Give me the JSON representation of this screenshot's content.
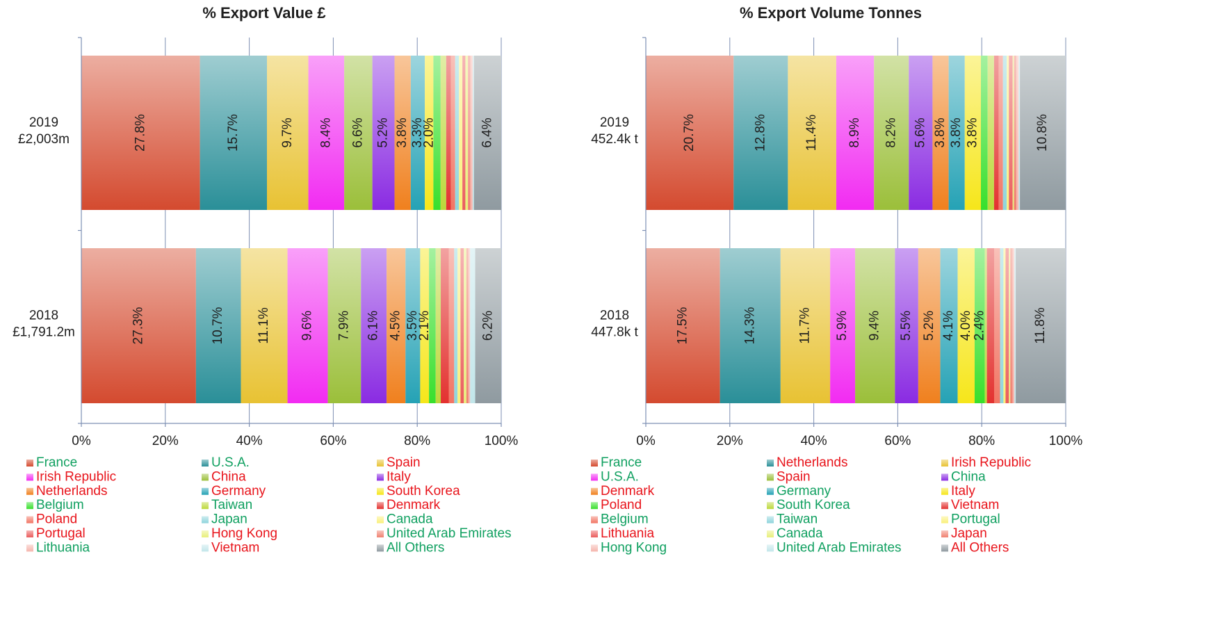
{
  "chart_data": [
    {
      "type": "bar",
      "orientation": "horizontal",
      "stacked": "percent",
      "title": "% Export Value £",
      "x_ticks": [
        "0%",
        "20%",
        "40%",
        "60%",
        "80%",
        "100%"
      ],
      "xlim": [
        0,
        100
      ],
      "grid": true,
      "legend_position": "bottom",
      "categories": [
        {
          "year": "2019",
          "total": "£2,003m"
        },
        {
          "year": "2018",
          "total": "£1,791.2m"
        }
      ],
      "series": [
        {
          "name": "France",
          "color": "#d44a2f",
          "label_color": "#10a060",
          "values": [
            27.8,
            27.3
          ]
        },
        {
          "name": "U.S.A.",
          "color": "#2a8f98",
          "label_color": "#10a060",
          "values": [
            15.7,
            10.7
          ]
        },
        {
          "name": "Spain",
          "color": "#e8c233",
          "label_color": "#e8141b",
          "values": [
            9.7,
            11.1
          ]
        },
        {
          "name": "Irish Republic",
          "color": "#f22bf2",
          "label_color": "#e8141b",
          "values": [
            8.4,
            9.6
          ]
        },
        {
          "name": "China",
          "color": "#9bbf3a",
          "label_color": "#e8141b",
          "values": [
            6.6,
            7.9
          ]
        },
        {
          "name": "Italy",
          "color": "#8a2be2",
          "label_color": "#e8141b",
          "values": [
            5.2,
            6.1
          ]
        },
        {
          "name": "Netherlands",
          "color": "#f0801e",
          "label_color": "#e8141b",
          "values": [
            3.8,
            4.5
          ]
        },
        {
          "name": "Germany",
          "color": "#25a2b5",
          "label_color": "#e8141b",
          "values": [
            3.3,
            3.5
          ]
        },
        {
          "name": "South Korea",
          "color": "#f6e61a",
          "label_color": "#e8141b",
          "values": [
            2.0,
            2.1
          ]
        },
        {
          "name": "Belgium",
          "color": "#38df2c",
          "label_color": "#10a060",
          "values": [
            1.7,
            1.6
          ]
        },
        {
          "name": "Taiwan",
          "color": "#bcd83a",
          "label_color": "#10a060",
          "values": [
            1.3,
            1.2
          ]
        },
        {
          "name": "Denmark",
          "color": "#e3312f",
          "label_color": "#e8141b",
          "values": [
            1.1,
            1.9
          ]
        },
        {
          "name": "Poland",
          "color": "#f27564",
          "label_color": "#e8141b",
          "values": [
            1.0,
            1.3
          ]
        },
        {
          "name": "Japan",
          "color": "#8fd4dc",
          "label_color": "#10a060",
          "values": [
            0.9,
            0.8
          ]
        },
        {
          "name": "Canada",
          "color": "#faf07a",
          "label_color": "#10a060",
          "values": [
            0.8,
            0.7
          ]
        },
        {
          "name": "Portugal",
          "color": "#ea5c5c",
          "label_color": "#e8141b",
          "values": [
            0.7,
            0.8
          ]
        },
        {
          "name": "Hong Kong",
          "color": "#e8ef7a",
          "label_color": "#e8141b",
          "values": [
            0.6,
            0.6
          ]
        },
        {
          "name": "United Arab Emirates",
          "color": "#f08070",
          "label_color": "#10a060",
          "values": [
            0.6,
            0.5
          ]
        },
        {
          "name": "Lithuania",
          "color": "#f5b5ad",
          "label_color": "#10a060",
          "values": [
            0.5,
            0.4
          ]
        },
        {
          "name": "Vietnam",
          "color": "#c2e6ea",
          "label_color": "#e8141b",
          "values": [
            0.3,
            1.2
          ]
        },
        {
          "name": "All Others",
          "color": "#8f9aa0",
          "label_color": "#10a060",
          "values": [
            6.4,
            6.2
          ]
        }
      ]
    },
    {
      "type": "bar",
      "orientation": "horizontal",
      "stacked": "percent",
      "title": "% Export Volume Tonnes",
      "x_ticks": [
        "0%",
        "20%",
        "40%",
        "60%",
        "80%",
        "100%"
      ],
      "xlim": [
        0,
        100
      ],
      "grid": true,
      "legend_position": "bottom",
      "categories": [
        {
          "year": "2019",
          "total": "452.4k t"
        },
        {
          "year": "2018",
          "total": "447.8k t"
        }
      ],
      "series": [
        {
          "name": "France",
          "color": "#d44a2f",
          "label_color": "#10a060",
          "values": [
            20.7,
            17.5
          ]
        },
        {
          "name": "Netherlands",
          "color": "#2a8f98",
          "label_color": "#e8141b",
          "values": [
            12.8,
            14.3
          ]
        },
        {
          "name": "Irish Republic",
          "color": "#e8c233",
          "label_color": "#e8141b",
          "values": [
            11.4,
            11.7
          ]
        },
        {
          "name": "U.S.A.",
          "color": "#f22bf2",
          "label_color": "#10a060",
          "values": [
            8.9,
            5.9
          ]
        },
        {
          "name": "Spain",
          "color": "#9bbf3a",
          "label_color": "#e8141b",
          "values": [
            8.2,
            9.4
          ]
        },
        {
          "name": "China",
          "color": "#8a2be2",
          "label_color": "#10a060",
          "values": [
            5.6,
            5.5
          ]
        },
        {
          "name": "Denmark",
          "color": "#f0801e",
          "label_color": "#e8141b",
          "values": [
            3.8,
            5.2
          ]
        },
        {
          "name": "Germany",
          "color": "#25a2b5",
          "label_color": "#10a060",
          "values": [
            3.8,
            4.1
          ]
        },
        {
          "name": "Italy",
          "color": "#f6e61a",
          "label_color": "#e8141b",
          "values": [
            3.8,
            4.0
          ]
        },
        {
          "name": "Poland",
          "color": "#38df2c",
          "label_color": "#e8141b",
          "values": [
            1.6,
            2.4
          ]
        },
        {
          "name": "South Korea",
          "color": "#bcd83a",
          "label_color": "#10a060",
          "values": [
            1.5,
            0.5
          ]
        },
        {
          "name": "Vietnam",
          "color": "#e3312f",
          "label_color": "#e8141b",
          "values": [
            1.1,
            1.7
          ]
        },
        {
          "name": "Belgium",
          "color": "#f27564",
          "label_color": "#10a060",
          "values": [
            1.0,
            1.4
          ]
        },
        {
          "name": "Taiwan",
          "color": "#8fd4dc",
          "label_color": "#10a060",
          "values": [
            0.9,
            0.8
          ]
        },
        {
          "name": "Portugal",
          "color": "#faf07a",
          "label_color": "#10a060",
          "values": [
            0.5,
            0.5
          ]
        },
        {
          "name": "Lithuania",
          "color": "#ea5c5c",
          "label_color": "#e8141b",
          "values": [
            0.9,
            0.8
          ]
        },
        {
          "name": "Canada",
          "color": "#e8ef7a",
          "label_color": "#10a060",
          "values": [
            0.3,
            0.3
          ]
        },
        {
          "name": "Japan",
          "color": "#f08070",
          "label_color": "#e8141b",
          "values": [
            0.6,
            0.6
          ]
        },
        {
          "name": "Hong Kong",
          "color": "#f5b5ad",
          "label_color": "#10a060",
          "values": [
            0.5,
            0.4
          ]
        },
        {
          "name": "United Arab Emirates",
          "color": "#c2e6ea",
          "label_color": "#10a060",
          "values": [
            0.3,
            0.3
          ]
        },
        {
          "name": "All Others",
          "color": "#8f9aa0",
          "label_color": "#e8141b",
          "values": [
            10.8,
            11.8
          ]
        }
      ]
    }
  ]
}
